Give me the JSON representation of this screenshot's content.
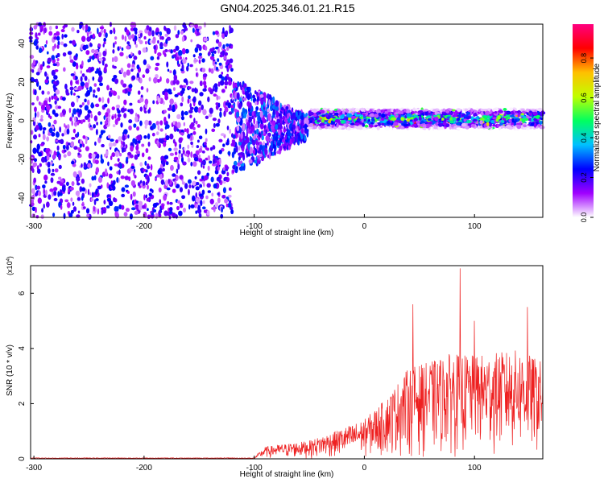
{
  "title": "GN04.2025.346.01.21.R15",
  "chart_data": [
    {
      "type": "heatmap",
      "xlabel": "Height of straight line (km)",
      "ylabel": "Frequency (Hz)",
      "xlim": [
        -303,
        162
      ],
      "ylim": [
        -50,
        50
      ],
      "xticks": [
        -300,
        -200,
        -100,
        0,
        100
      ],
      "yticks": [
        -40,
        -20,
        0,
        20,
        40
      ],
      "colorbar": {
        "label": "Normalized spectral amplitude",
        "range": [
          0,
          0.97
        ],
        "ticks": [
          "0.0",
          "0.2",
          "0.4",
          "0.6",
          "0.8"
        ],
        "colors": [
          "#ffffff",
          "#a000ff",
          "#0000ff",
          "#00c0ff",
          "#00ff60",
          "#c0ff00",
          "#ffc000",
          "#ff0000",
          "#ff0080"
        ]
      },
      "description_regions": [
        {
          "x_range": [
            -303,
            -120
          ],
          "freq_range": [
            -50,
            50
          ],
          "amplitude": 0.15
        },
        {
          "x_range": [
            -120,
            -50
          ],
          "freq_range": [
            -25,
            15
          ],
          "amplitude": 0.25
        },
        {
          "x_range": [
            -50,
            162
          ],
          "freq_range": [
            -4,
            4
          ],
          "amplitude_peak": 0.95
        }
      ]
    },
    {
      "type": "line",
      "xlabel": "Height of straight line (km)",
      "ylabel": "SNR (10 * v/v)",
      "y_multiplier": "(x10^4)",
      "xlim": [
        -303,
        162
      ],
      "ylim": [
        0,
        7
      ],
      "xticks": [
        -300,
        -200,
        -100,
        0,
        100
      ],
      "yticks": [
        0,
        2,
        4,
        6
      ],
      "color": "#ee2020",
      "envelope": [
        {
          "x": -300,
          "y": 0.02
        },
        {
          "x": -150,
          "y": 0.02
        },
        {
          "x": -100,
          "y": 0.05
        },
        {
          "x": -90,
          "y": 0.4
        },
        {
          "x": -50,
          "y": 0.6
        },
        {
          "x": -20,
          "y": 1.0
        },
        {
          "x": 0,
          "y": 1.3
        },
        {
          "x": 20,
          "y": 2.0
        },
        {
          "x": 40,
          "y": 3.0
        },
        {
          "x": 60,
          "y": 3.2
        },
        {
          "x": 80,
          "y": 3.5
        },
        {
          "x": 100,
          "y": 3.4
        },
        {
          "x": 120,
          "y": 3.5
        },
        {
          "x": 140,
          "y": 3.6
        },
        {
          "x": 162,
          "y": 3.2
        }
      ],
      "peaks": [
        {
          "x": 44,
          "y": 5.6
        },
        {
          "x": 87,
          "y": 6.9
        },
        {
          "x": 148,
          "y": 5.5
        },
        {
          "x": 100,
          "y": 5.0
        }
      ]
    }
  ]
}
